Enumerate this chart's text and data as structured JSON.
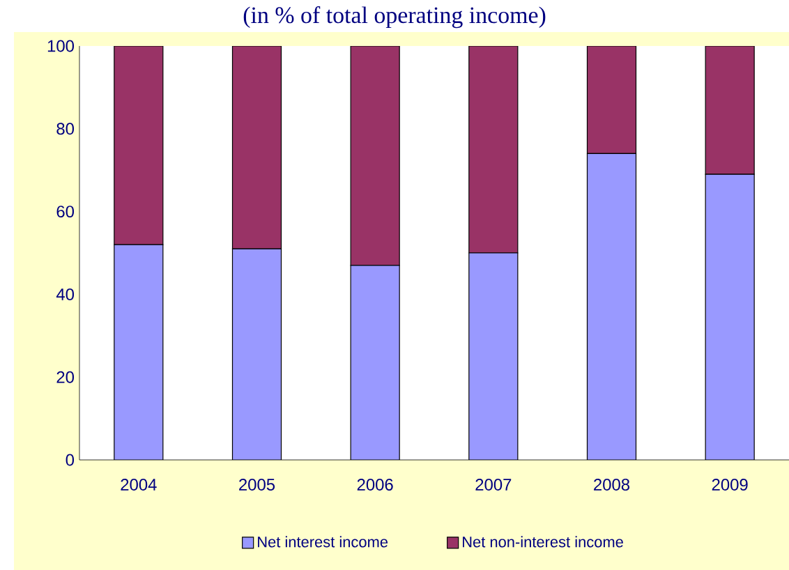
{
  "chart_data": {
    "type": "bar",
    "title": "(in % of total operating income)",
    "stacked": true,
    "categories": [
      "2004",
      "2005",
      "2006",
      "2007",
      "2008",
      "2009"
    ],
    "series": [
      {
        "name": "Net interest income",
        "color": "#9999ff",
        "values": [
          52,
          51,
          47,
          50,
          74,
          69
        ]
      },
      {
        "name": "Net non-interest income",
        "color": "#993366",
        "values": [
          48,
          49,
          53,
          50,
          26,
          31
        ]
      }
    ],
    "ylim": [
      0,
      100
    ],
    "yticks": [
      0,
      20,
      40,
      60,
      80,
      100
    ],
    "grid": false,
    "legend": "bottom"
  }
}
